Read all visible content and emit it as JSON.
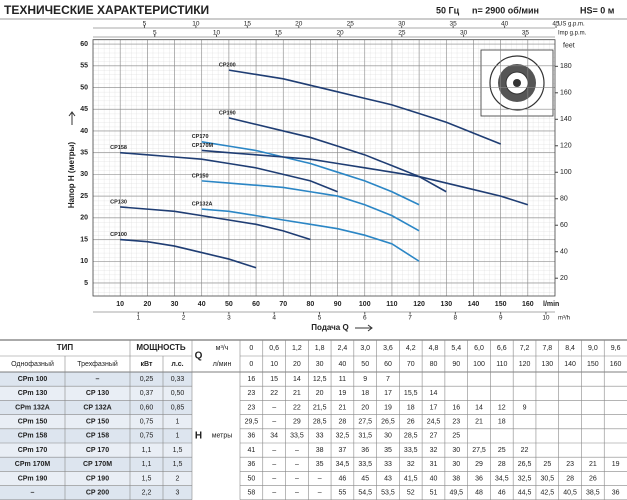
{
  "header": {
    "title": "ТЕХНИЧЕСКИЕ ХАРАКТЕРИСТИКИ",
    "frequency": "50 Гц",
    "speed": "n= 2900 об/мин",
    "suction": "HS= 0 м"
  },
  "chart_data": {
    "type": "line",
    "x": [
      10,
      20,
      30,
      40,
      50,
      60,
      70,
      80,
      90,
      100,
      110,
      120,
      130,
      140,
      150,
      160
    ],
    "xlim": [
      0,
      170
    ],
    "xticks": [
      10,
      20,
      30,
      40,
      50,
      60,
      70,
      80,
      90,
      100,
      110,
      120,
      130,
      140,
      150,
      160
    ],
    "x_unit": "l/min",
    "xlabel": "Подача Q",
    "ylabel": "Напор H (метры)",
    "ylim": [
      2,
      61
    ],
    "yticks": [
      5,
      10,
      15,
      20,
      25,
      30,
      35,
      40,
      45,
      50,
      55,
      60
    ],
    "y2lim": [
      6.56,
      200.1
    ],
    "y2ticks": [
      20,
      40,
      60,
      80,
      100,
      120,
      140,
      160,
      180
    ],
    "y2label": "feet",
    "us_gpm": {
      "label": "US g.p.m.",
      "lim": [
        0,
        44.9
      ],
      "ticks": [
        5,
        10,
        15,
        20,
        25,
        30,
        35,
        40,
        45
      ]
    },
    "imp_gpm": {
      "label": "Imp g.p.m.",
      "lim": [
        0,
        37.4
      ],
      "ticks": [
        5,
        10,
        15,
        20,
        25,
        30,
        35
      ]
    },
    "m3h": {
      "label": "m³/h",
      "lim": [
        0,
        10.2
      ],
      "ticks": [
        1,
        2,
        3,
        4,
        5,
        6,
        7,
        8,
        9,
        10
      ]
    },
    "grid": true,
    "series": [
      {
        "name": "CP200",
        "color": "#1f3d73",
        "values": [
          null,
          null,
          null,
          null,
          54,
          53,
          52,
          50.5,
          49,
          47.5,
          46,
          44,
          42,
          39.5,
          37,
          null
        ]
      },
      {
        "name": "CP190",
        "color": "#1f3d73",
        "values": [
          null,
          null,
          null,
          null,
          43,
          41.5,
          40,
          38.5,
          36.5,
          34.5,
          32,
          29.5,
          26,
          null,
          null,
          null
        ]
      },
      {
        "name": "CP170",
        "color": "#2b86c5",
        "values": [
          null,
          null,
          null,
          37.5,
          36.5,
          35.5,
          34,
          32.5,
          30.5,
          28.5,
          26,
          23,
          null,
          null,
          null,
          null
        ]
      },
      {
        "name": "CP170M",
        "color": "#1f3d73",
        "values": [
          null,
          null,
          null,
          35.5,
          35,
          34.5,
          34,
          33.5,
          32.5,
          31.5,
          30.5,
          29.5,
          28,
          26.5,
          25,
          23
        ]
      },
      {
        "name": "CP158",
        "color": "#1f3d73",
        "values": [
          35,
          34.5,
          34,
          33.5,
          32.5,
          31.5,
          30,
          28.5,
          26,
          null,
          null,
          null,
          null,
          null,
          null,
          null
        ]
      },
      {
        "name": "CP150",
        "color": "#2b86c5",
        "values": [
          null,
          null,
          null,
          28.5,
          28,
          27.5,
          27,
          26,
          25,
          23,
          20.5,
          17,
          null,
          null,
          null,
          null
        ]
      },
      {
        "name": "CP132A",
        "color": "#2b86c5",
        "values": [
          null,
          null,
          null,
          22,
          21.5,
          20.5,
          19.5,
          18.5,
          17.5,
          16,
          14,
          10,
          null,
          null,
          null,
          null
        ]
      },
      {
        "name": "CP130",
        "color": "#1f3d73",
        "values": [
          22.5,
          22,
          21.5,
          20.5,
          19.5,
          18.5,
          17,
          15,
          null,
          null,
          null,
          null,
          null,
          null,
          null,
          null
        ]
      },
      {
        "name": "CP100",
        "color": "#1f3d73",
        "values": [
          15,
          14.5,
          13.5,
          12,
          10.5,
          8.5,
          null,
          null,
          null,
          null,
          null,
          null,
          null,
          null,
          null,
          null
        ]
      }
    ]
  },
  "table": {
    "head": {
      "type": "ТИП",
      "single": "Однофазный",
      "three": "Трехфазный",
      "power": "МОЩНОСТЬ",
      "kw": "кВт",
      "hp": "л.с.",
      "q": "Q",
      "m3h_unit": "м³/ч",
      "lmin_unit": "л/мин",
      "h": "H",
      "h_unit": "метры"
    },
    "m3h": [
      "0",
      "0,6",
      "1,2",
      "1,8",
      "2,4",
      "3,0",
      "3,6",
      "4,2",
      "4,8",
      "5,4",
      "6,0",
      "6,6",
      "7,2",
      "7,8",
      "8,4",
      "9,0",
      "9,6"
    ],
    "lmin": [
      "0",
      "10",
      "20",
      "30",
      "40",
      "50",
      "60",
      "70",
      "80",
      "90",
      "100",
      "110",
      "120",
      "130",
      "140",
      "150",
      "160"
    ],
    "rows": [
      {
        "single": "CPm 100",
        "three": "–",
        "kw": "0,25",
        "hp": "0,33",
        "h": [
          "16",
          "15",
          "14",
          "12,5",
          "11",
          "9",
          "7"
        ]
      },
      {
        "single": "CPm 130",
        "three": "CP 130",
        "kw": "0,37",
        "hp": "0,50",
        "h": [
          "23",
          "22",
          "21",
          "20",
          "19",
          "18",
          "17",
          "15,5",
          "14"
        ]
      },
      {
        "single": "CPm 132A",
        "three": "CP 132A",
        "kw": "0,60",
        "hp": "0,85",
        "h": [
          "23",
          "–",
          "22",
          "21,5",
          "21",
          "20",
          "19",
          "18",
          "17",
          "16",
          "14",
          "12",
          "9"
        ]
      },
      {
        "single": "CPm 150",
        "three": "CP 150",
        "kw": "0,75",
        "hp": "1",
        "h": [
          "29,5",
          "–",
          "29",
          "28,5",
          "28",
          "27,5",
          "26,5",
          "26",
          "24,5",
          "23",
          "21",
          "18"
        ]
      },
      {
        "single": "CPm 158",
        "three": "CP 158",
        "kw": "0,75",
        "hp": "1",
        "h": [
          "36",
          "34",
          "33,5",
          "33",
          "32,5",
          "31,5",
          "30",
          "28,5",
          "27",
          "25"
        ]
      },
      {
        "single": "CPm 170",
        "three": "CP 170",
        "kw": "1,1",
        "hp": "1,5",
        "h": [
          "41",
          "–",
          "–",
          "38",
          "37",
          "36",
          "35",
          "33,5",
          "32",
          "30",
          "27,5",
          "25",
          "22"
        ]
      },
      {
        "single": "CPm 170M",
        "three": "CP 170M",
        "kw": "1,1",
        "hp": "1,5",
        "h": [
          "36",
          "–",
          "–",
          "35",
          "34,5",
          "33,5",
          "33",
          "32",
          "31",
          "30",
          "29",
          "28",
          "26,5",
          "25",
          "23",
          "21",
          "19"
        ]
      },
      {
        "single": "CPm 190",
        "three": "CP 190",
        "kw": "1,5",
        "hp": "2",
        "h": [
          "50",
          "–",
          "–",
          "–",
          "46",
          "45",
          "43",
          "41,5",
          "40",
          "38",
          "36",
          "34,5",
          "32,5",
          "30,5",
          "28",
          "26"
        ]
      },
      {
        "single": "–",
        "three": "CP 200",
        "kw": "2,2",
        "hp": "3",
        "h": [
          "58",
          "–",
          "–",
          "–",
          "55",
          "54,5",
          "53,5",
          "52",
          "51",
          "49,5",
          "48",
          "46",
          "44,5",
          "42,5",
          "40,5",
          "38,5",
          "36"
        ]
      }
    ]
  }
}
